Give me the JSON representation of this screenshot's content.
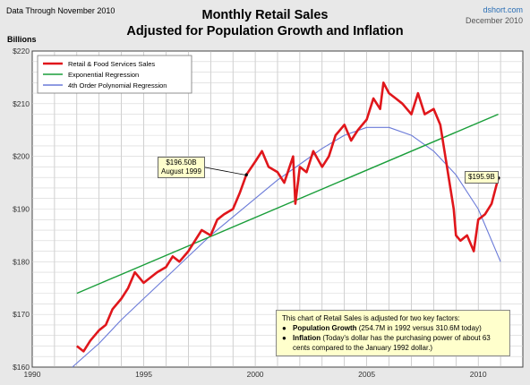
{
  "header": {
    "left": "Data Through November 2010",
    "source": "dshort.com",
    "date": "December 2010",
    "title_line1": "Monthly Retail Sales",
    "title_line2": "Adjusted for Population Growth and Inflation"
  },
  "note": {
    "intro": "This chart of Retail Sales is adjusted for two key factors:",
    "item1_bold": "Population Growth",
    "item1_text": " (254.7M in 1992 versus 310.6M today)",
    "item2_bold": "Inflation",
    "item2_text": " (Today's dollar has the purchasing power of about 63 cents compared to the January 1992  dollar.)"
  },
  "colors": {
    "background": "#e8e8e8",
    "plot": "#ffffff",
    "retail": "#e0161b",
    "exponential": "#1a9e3a",
    "polynomial": "#6a7ad8",
    "callout": "#ffffcc"
  },
  "chart_data": {
    "type": "line",
    "title": "Monthly Retail Sales Adjusted for Population Growth and Inflation",
    "ylabel": "Billions",
    "xlim": [
      1990,
      2012
    ],
    "ylim": [
      160,
      220
    ],
    "x_ticks": [
      1990,
      1995,
      2000,
      2005,
      2010
    ],
    "y_ticks": [
      160,
      170,
      180,
      190,
      200,
      210,
      220
    ],
    "y_tick_labels": [
      "$160",
      "$170",
      "$180",
      "$190",
      "$200",
      "$210",
      "$220"
    ],
    "grid": true,
    "legend_position": "top-left",
    "series": [
      {
        "name": "Retail & Food Services Sales",
        "x": [
          1992.0,
          1992.3,
          1992.6,
          1993.0,
          1993.3,
          1993.6,
          1994.0,
          1994.3,
          1994.6,
          1995.0,
          1995.3,
          1995.6,
          1996.0,
          1996.3,
          1996.6,
          1997.0,
          1997.3,
          1997.6,
          1998.0,
          1998.3,
          1998.6,
          1999.0,
          1999.3,
          1999.6,
          2000.0,
          2000.3,
          2000.6,
          2001.0,
          2001.3,
          2001.7,
          2001.8,
          2002.0,
          2002.3,
          2002.6,
          2003.0,
          2003.3,
          2003.6,
          2004.0,
          2004.3,
          2004.6,
          2005.0,
          2005.3,
          2005.6,
          2005.75,
          2006.0,
          2006.3,
          2006.6,
          2007.0,
          2007.3,
          2007.6,
          2008.0,
          2008.3,
          2008.6,
          2008.9,
          2009.0,
          2009.2,
          2009.5,
          2009.8,
          2010.0,
          2010.3,
          2010.6,
          2010.9
        ],
        "values": [
          164.0,
          163.0,
          165.0,
          167.0,
          168.0,
          171.0,
          173.0,
          175.0,
          178.0,
          176.0,
          177.0,
          178.0,
          179.0,
          181.0,
          180.0,
          182.0,
          184.0,
          186.0,
          185.0,
          188.0,
          189.0,
          190.0,
          193.0,
          196.5,
          199.0,
          201.0,
          198.0,
          197.0,
          195.0,
          200.0,
          191.0,
          198.0,
          197.0,
          201.0,
          198.0,
          200.0,
          204.0,
          206.0,
          203.0,
          205.0,
          207.0,
          211.0,
          209.0,
          214.0,
          212.0,
          211.0,
          210.0,
          208.0,
          212.0,
          208.0,
          209.0,
          206.0,
          198.0,
          190.0,
          185.0,
          184.0,
          185.0,
          182.0,
          188.0,
          189.0,
          191.0,
          195.9
        ]
      },
      {
        "name": "Exponential Regression",
        "x": [
          1992.0,
          2010.9
        ],
        "values": [
          174.0,
          208.0
        ]
      },
      {
        "name": "4th Order Polynomial Regression",
        "x": [
          1991.8,
          1993.0,
          1994.0,
          1995.0,
          1996.0,
          1997.0,
          1998.0,
          1999.0,
          2000.0,
          2001.0,
          2002.0,
          2003.0,
          2004.0,
          2005.0,
          2006.0,
          2007.0,
          2008.0,
          2009.0,
          2010.0,
          2011.0
        ],
        "values": [
          160.0,
          164.5,
          169.0,
          173.0,
          177.0,
          181.0,
          185.0,
          188.5,
          192.0,
          195.5,
          198.5,
          201.5,
          204.0,
          205.5,
          205.5,
          204.0,
          201.0,
          196.5,
          190.0,
          180.0
        ]
      }
    ],
    "annotations": [
      {
        "label1": "$196.50B",
        "label2": "August 1999",
        "x": 1999.6,
        "y": 196.5
      },
      {
        "label1": "$195.9B",
        "x": 2010.9,
        "y": 195.9
      }
    ]
  }
}
